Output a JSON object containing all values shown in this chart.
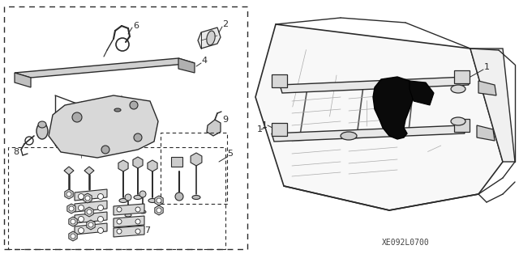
{
  "bg_color": "#ffffff",
  "line_color": "#2a2a2a",
  "diagram_code": "XE092L0700",
  "fig_w": 6.4,
  "fig_h": 3.19,
  "dpi": 100
}
